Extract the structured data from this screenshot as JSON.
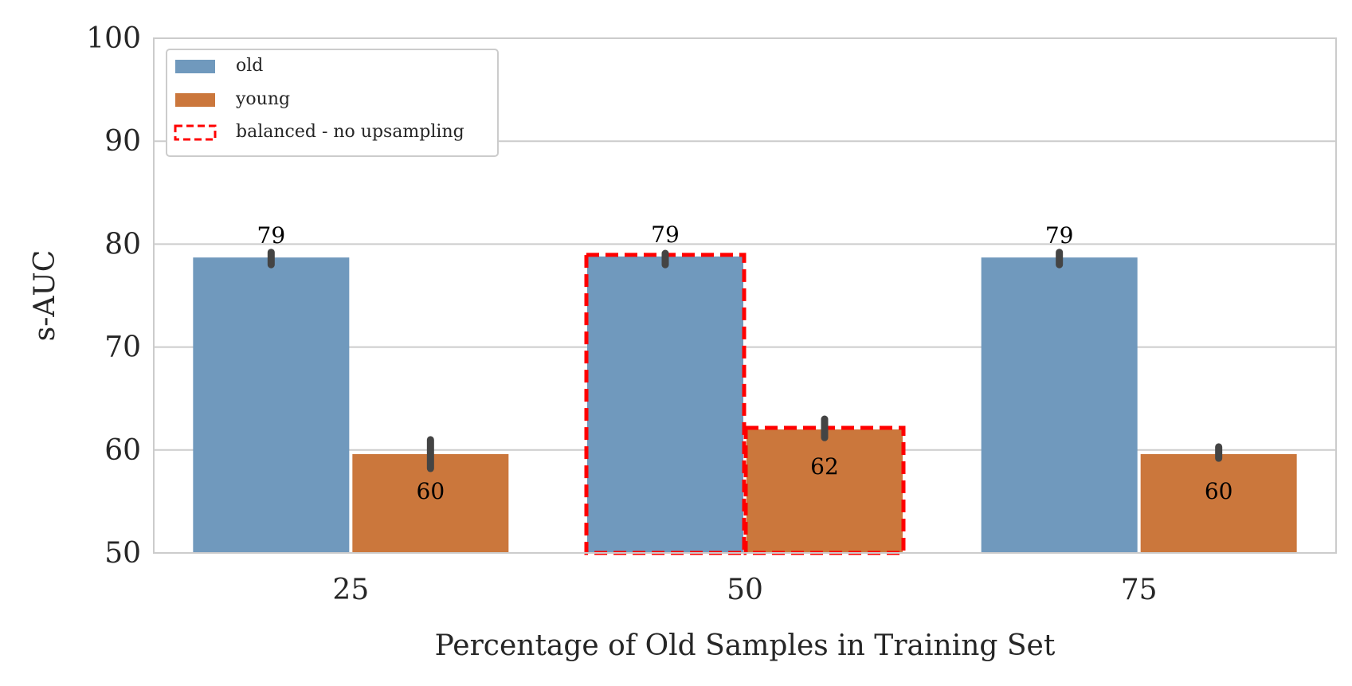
{
  "chart_data": {
    "type": "bar",
    "title": "",
    "xlabel": "Percentage of Old Samples in Training Set",
    "ylabel": "s-AUC",
    "ylim": [
      50,
      100
    ],
    "yticks": [
      "50",
      "60",
      "70",
      "80",
      "90",
      "100"
    ],
    "categories": [
      "25",
      "50",
      "75"
    ],
    "grid": true,
    "legend_position": "top-left",
    "series": [
      {
        "name": "old",
        "color": "#7099bd",
        "values": [
          78.7,
          78.8,
          78.7
        ],
        "error_low": [
          78.0,
          78.0,
          78.0
        ],
        "error_high": [
          79.2,
          79.1,
          79.2
        ],
        "labels": [
          "79",
          "79",
          "79"
        ]
      },
      {
        "name": "young",
        "color": "#cb773c",
        "values": [
          59.6,
          62.0,
          59.6
        ],
        "error_low": [
          58.2,
          61.2,
          59.2
        ],
        "error_high": [
          61.0,
          63.0,
          60.3
        ],
        "labels": [
          "60",
          "62",
          "60"
        ]
      }
    ],
    "highlight": {
      "label": "balanced - no upsampling",
      "category": "50",
      "color": "#ff0000"
    }
  }
}
